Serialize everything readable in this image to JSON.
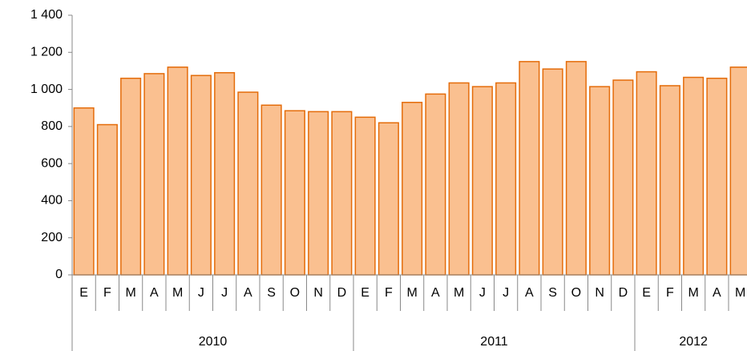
{
  "chart_data": {
    "type": "bar",
    "categories": [
      "E",
      "F",
      "M",
      "A",
      "M",
      "J",
      "J",
      "A",
      "S",
      "O",
      "N",
      "D",
      "E",
      "F",
      "M",
      "A",
      "M",
      "J",
      "J",
      "A",
      "S",
      "O",
      "N",
      "D",
      "E",
      "F",
      "M",
      "A",
      "M"
    ],
    "years": [
      "2010",
      "2011",
      "2012"
    ],
    "values": [
      900,
      810,
      1060,
      1085,
      1120,
      1075,
      1090,
      985,
      915,
      885,
      880,
      880,
      850,
      820,
      930,
      975,
      1035,
      1015,
      1035,
      1150,
      1110,
      1150,
      1015,
      1050,
      1095,
      1020,
      1065,
      1060,
      1120
    ],
    "color": "#fac090",
    "edge_color": "#e46c0a",
    "ylim": [
      0,
      1400
    ],
    "yticks": [
      0,
      200,
      400,
      600,
      800,
      {
        "value": 1000,
        "label": "1 000"
      },
      {
        "value": 1200,
        "label": "1 200"
      },
      {
        "value": 1400,
        "label": "1 400"
      }
    ],
    "grid": false
  }
}
